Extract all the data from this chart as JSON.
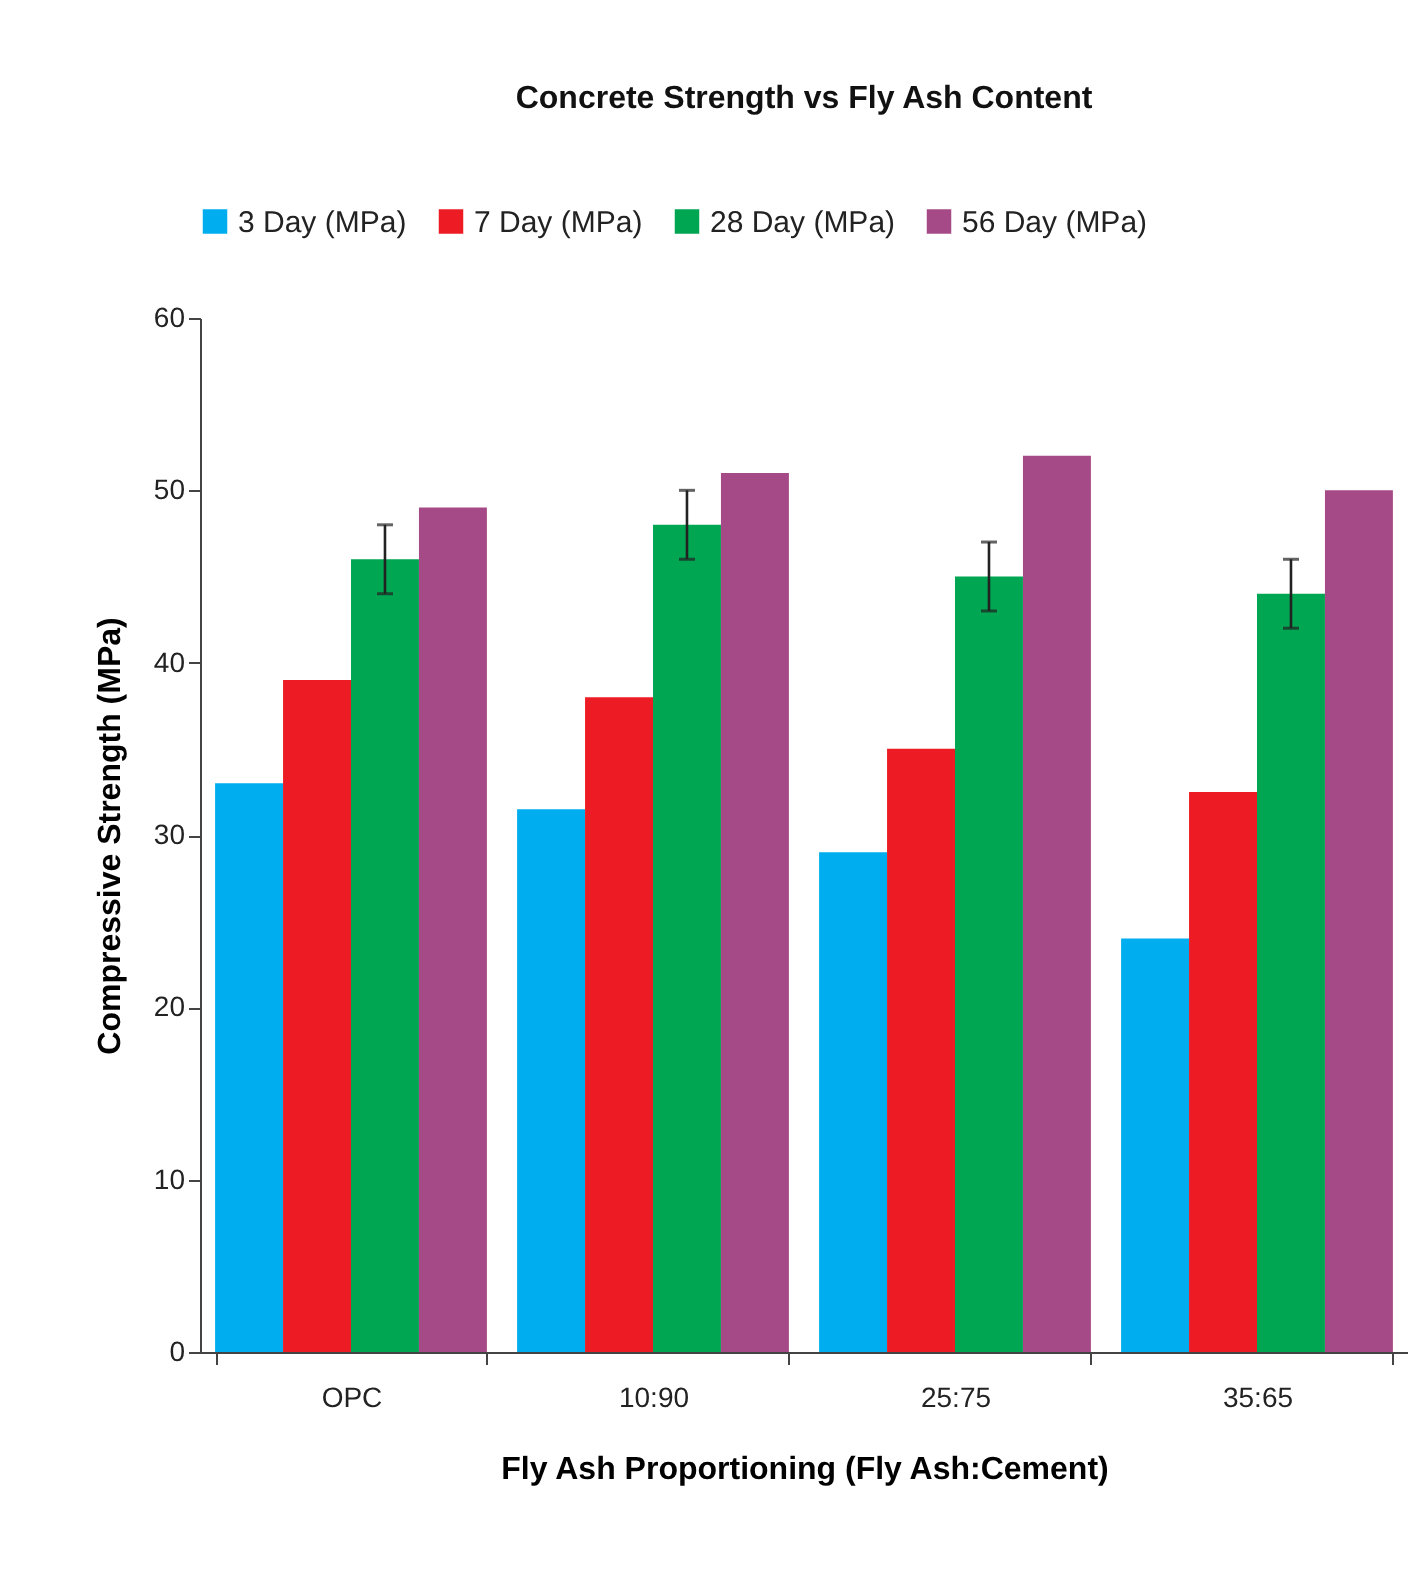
{
  "chart_data": {
    "type": "bar",
    "title": "Concrete Strength vs Fly Ash Content",
    "xlabel": "Fly Ash Proportioning (Fly Ash:Cement)",
    "ylabel": "Compressive Strength (MPa)",
    "categories": [
      "OPC",
      "10:90",
      "25:75",
      "35:65"
    ],
    "series": [
      {
        "name": "3 Day (MPa)",
        "color": "#00adee",
        "values": [
          33,
          31.5,
          29,
          24
        ]
      },
      {
        "name": "7 Day (MPa)",
        "color": "#ed1c24",
        "values": [
          39,
          38,
          35,
          32.5
        ]
      },
      {
        "name": "28 Day (MPa)",
        "color": "#00a651",
        "values": [
          46,
          48,
          45,
          44
        ],
        "errors": [
          2,
          2,
          2,
          2
        ]
      },
      {
        "name": "56 Day (MPa)",
        "color": "#a54a86",
        "values": [
          49,
          51,
          52,
          50
        ]
      }
    ],
    "ylim": [
      0,
      60
    ],
    "yticks": [
      0,
      10,
      20,
      30,
      40,
      50,
      60
    ],
    "grid": false,
    "legend": "top"
  }
}
